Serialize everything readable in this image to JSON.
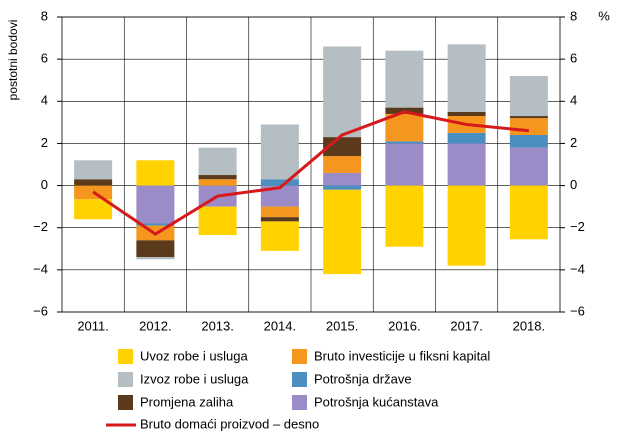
{
  "chart_data": {
    "type": "bar",
    "y_label": "postotni bodovi",
    "y2_label": "%",
    "categories": [
      "2011.",
      "2012.",
      "2013.",
      "2014.",
      "2015.",
      "2016.",
      "2017.",
      "2018."
    ],
    "series": [
      {
        "name": "Uvoz robe i usluga",
        "color": "#ffd200",
        "values": [
          -0.95,
          1.2,
          -1.35,
          -1.4,
          -4.0,
          -2.9,
          -3.8,
          -2.55
        ]
      },
      {
        "name": "Bruto investicije u fiksni kapital",
        "color": "#f5961e",
        "values": [
          -0.65,
          -0.7,
          0.3,
          -0.5,
          0.8,
          1.3,
          0.8,
          0.8
        ]
      },
      {
        "name": "Izvoz robe i usluga",
        "color": "#b4bec3",
        "values": [
          0.9,
          -0.1,
          1.3,
          2.6,
          4.3,
          2.7,
          3.2,
          1.9
        ]
      },
      {
        "name": "Potrošnja države",
        "color": "#4a8fbf",
        "values": [
          0,
          -0.1,
          0,
          0.3,
          -0.2,
          0.1,
          0.5,
          0.6
        ]
      },
      {
        "name": "Promjena zaliha",
        "color": "#5a3a1a",
        "values": [
          0.3,
          -0.8,
          0.2,
          -0.2,
          0.9,
          0.3,
          0.2,
          0.1
        ]
      },
      {
        "name": "Potrošnja kućanstava",
        "color": "#9b8cc8",
        "values": [
          0,
          -1.8,
          -1.0,
          -1.0,
          0.6,
          2.0,
          2.0,
          1.8
        ]
      },
      {
        "name": "Bruto domaći proizvod – desno",
        "color": "#d7191c",
        "type": "line",
        "axis": "y2",
        "values": [
          -0.3,
          -2.3,
          -0.5,
          -0.1,
          2.4,
          3.5,
          2.9,
          2.6
        ]
      }
    ],
    "ylim": [
      -6,
      8
    ],
    "yticks": [
      {
        "value": -6,
        "label": "−6"
      },
      {
        "value": -4,
        "label": "−4"
      },
      {
        "value": -2,
        "label": "−2"
      },
      0,
      2,
      4,
      6,
      8
    ],
    "y2lim": [
      -6,
      8
    ],
    "y2ticks": [
      {
        "value": -6,
        "label": "−6"
      },
      {
        "value": -4,
        "label": "−4"
      },
      {
        "value": -2,
        "label": "−2"
      },
      0,
      2,
      4,
      6,
      8
    ],
    "grid": true
  }
}
